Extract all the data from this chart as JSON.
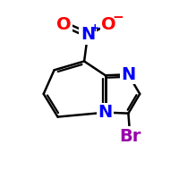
{
  "bg_color": "#ffffff",
  "bond_color": "#000000",
  "bond_width": 1.8,
  "atom_colors": {
    "N": "#0000ff",
    "O": "#ff0000",
    "Br": "#9900aa",
    "plus": "#0000ff",
    "minus": "#ff0000"
  },
  "font_size_atom": 14,
  "font_size_small": 9,
  "figsize": [
    2.0,
    2.0
  ],
  "dpi": 100
}
